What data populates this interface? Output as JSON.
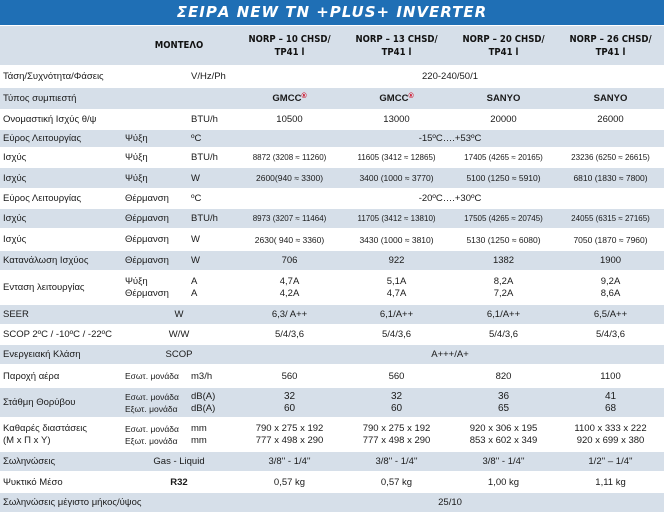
{
  "title": "ΣΕΙΡΑ NEW TN +PLUS+ INVERTER",
  "header": {
    "model_label": "ΜΟΝΤΕΛΟ",
    "models": [
      {
        "l1": "NORP – 10 CHSD/",
        "l2": "TP41 l"
      },
      {
        "l1": "NORP – 13 CHSD/",
        "l2": "TP41 l"
      },
      {
        "l1": "NORP – 20 CHSD/",
        "l2": "TP41 l"
      },
      {
        "l1": "NORP – 26 CHSD/",
        "l2": "TP41 l"
      }
    ]
  },
  "rows": {
    "power_supply": {
      "label": "Τάση/Συχνότητα/Φάσεις",
      "unit": "V/Hz/Ph",
      "value": "220-240/50/1"
    },
    "compressor": {
      "label": "Τύπος συμπιεστή",
      "values": [
        "GMCC",
        "GMCC",
        "SANYO",
        "SANYO"
      ],
      "mark": "®"
    },
    "nominal_capacity": {
      "label": "Ονομαστική Ισχύς θ/ψ",
      "unit": "BTU/h",
      "values": [
        "10500",
        "13000",
        "20000",
        "26000"
      ]
    },
    "range_cooling": {
      "label": "Εύρος Λειτουργίας",
      "mode": "Ψύξη",
      "unit": "ºC",
      "value": "-15ºC….+53ºC"
    },
    "cap_cool_btu": {
      "label": "Ισχύς",
      "mode": "Ψύξη",
      "unit": "BTU/h",
      "values": [
        "8872 (3208 ≈ 11260)",
        "11605 (3412 ≈ 12865)",
        "17405 (4265 ≈ 20165)",
        "23236 (6250 ≈ 26615)"
      ]
    },
    "cap_cool_w": {
      "label": "Ισχύς",
      "mode": "Ψύξη",
      "unit": "W",
      "values": [
        "2600(940 ≈ 3300)",
        "3400 (1000 ≈ 3770)",
        "5100 (1250 ≈ 5910)",
        "6810 (1830 ≈ 7800)"
      ]
    },
    "range_heating": {
      "label": "Εύρος Λειτουργίας",
      "mode": "Θέρμανση",
      "unit": "ºC",
      "value": "-20ºC….+30ºC"
    },
    "cap_heat_btu": {
      "label": "Ισχύς",
      "mode": "Θέρμανση",
      "unit": "BTU/h",
      "values": [
        "8973 (3207 ≈ 11464)",
        "11705 (3412 ≈ 13810)",
        "17505 (4265 ≈ 20745)",
        "24055 (6315 ≈ 27165)"
      ]
    },
    "cap_heat_w": {
      "label": "Ισχύς",
      "mode": "Θέρμανση",
      "unit": "W",
      "values": [
        "2630( 940 ≈ 3360)",
        "3430 (1000 ≈ 3810)",
        "5130 (1250 ≈ 6080)",
        "7050 (1870 ≈ 7960)"
      ]
    },
    "consumption": {
      "label": "Κατανάλωση Ισχύος",
      "mode": "Θέρμανση",
      "unit": "W",
      "values": [
        "706",
        "922",
        "1382",
        "1900"
      ]
    },
    "current": {
      "label": "Ενταση λειτουργίας",
      "mode1": "Ψύξη",
      "mode2": "Θέρμανση",
      "unit1": "A",
      "unit2": "A",
      "values1": [
        "4,7A",
        "5,1A",
        "8,2A",
        "9,2A"
      ],
      "values2": [
        "4,2A",
        "4,7A",
        "7,2A",
        "8,6A"
      ]
    },
    "seer": {
      "label": "SEER",
      "unit": "W",
      "values": [
        "6,3/ A++",
        "6,1/A++",
        "6,1/A++",
        "6,5/A++"
      ]
    },
    "scop": {
      "label": "SCOP 2ºC / -10ºC / -22ºC",
      "unit": "W/W",
      "values": [
        "5/4/3,6",
        "5/4/3,6",
        "5/4/3,6",
        "5/4/3,6"
      ]
    },
    "energy_class": {
      "label": "Ενεργειακή Κλάση",
      "unit": "SCOP",
      "value": "A+++/A+"
    },
    "airflow": {
      "label": "Παροχή αέρα",
      "mode": "Εσωτ. μονάδα",
      "unit": "m3/h",
      "values": [
        "560",
        "560",
        "820",
        "1100"
      ]
    },
    "noise": {
      "label": "Στάθμη Θορύβου",
      "mode1": "Εσωτ. μονάδα",
      "mode2": "Εξωτ. μονάδα",
      "unit1": "dB(A)",
      "unit2": "dB(A)",
      "values1": [
        "32",
        "32",
        "36",
        "41"
      ],
      "values2": [
        "60",
        "60",
        "65",
        "68"
      ]
    },
    "dimensions": {
      "label1": "Καθαρές διαστάσεις",
      "label2": "(Μ x Π x Υ)",
      "mode1": "Εσωτ. μονάδα",
      "mode2": "Εξωτ. μονάδα",
      "unit1": "mm",
      "unit2": "mm",
      "values1": [
        "790 x 275 x 192",
        "790 x 275 x 192",
        "920 x 306 x 195",
        "1100 x 333 x 222"
      ],
      "values2": [
        "777 x 498 x 290",
        "777 x 498 x 290",
        "853 x 602 x 349",
        "920 x 699 x 380"
      ]
    },
    "piping": {
      "label": "Σωληνώσεις",
      "unit": "Gas - Liquid",
      "values": [
        "3/8'' - 1/4''",
        "3/8'' - 1/4''",
        "3/8'' - 1/4''",
        "1/2'' – 1/4''"
      ]
    },
    "refrigerant": {
      "label": "Ψυκτικό Μέσο",
      "unit": "R32",
      "values": [
        "0,57 kg",
        "0,57 kg",
        "1,00 kg",
        "1,11 kg"
      ]
    },
    "max_length": {
      "label": "Σωληνώσεις μέγιστο μήκος/ύψος",
      "value": "25/10"
    }
  }
}
